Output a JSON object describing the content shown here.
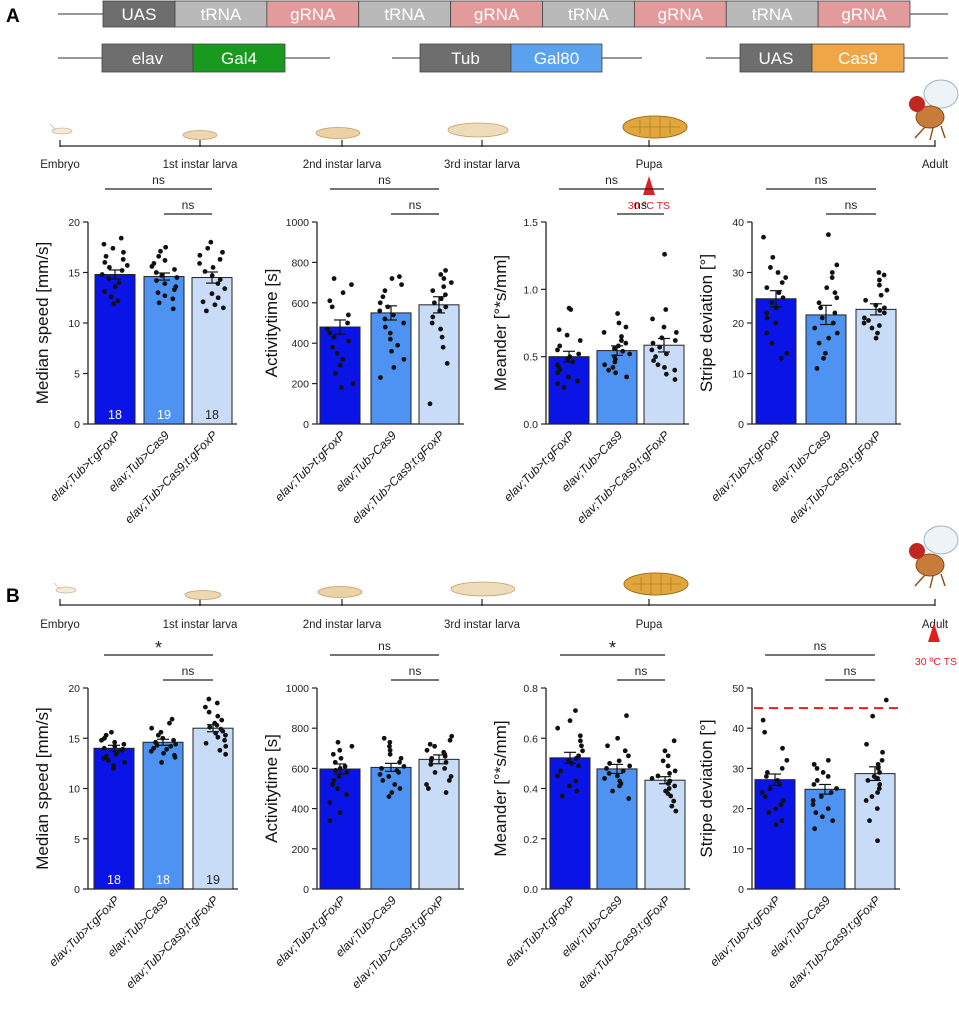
{
  "panel_a": {
    "label": "A",
    "construct": {
      "row1": [
        {
          "text": "UAS",
          "color": "#6e6e6e"
        },
        {
          "text": "tRNA",
          "color": "#b9b9b9"
        },
        {
          "text": "gRNA",
          "color": "#e39a9a"
        },
        {
          "text": "tRNA",
          "color": "#b9b9b9"
        },
        {
          "text": "gRNA",
          "color": "#e39a9a"
        },
        {
          "text": "tRNA",
          "color": "#b9b9b9"
        },
        {
          "text": "gRNA",
          "color": "#e39a9a"
        },
        {
          "text": "tRNA",
          "color": "#b9b9b9"
        },
        {
          "text": "gRNA",
          "color": "#e39a9a"
        }
      ],
      "row2": [
        {
          "promoter": "elav",
          "promoter_color": "#6e6e6e",
          "gene": "Gal4",
          "gene_color": "#179a1d"
        },
        {
          "promoter": "Tub",
          "promoter_color": "#6e6e6e",
          "gene": "Gal80",
          "gene_color": "#5aa2f0"
        },
        {
          "promoter": "UAS",
          "promoter_color": "#6e6e6e",
          "gene": "Cas9",
          "gene_color": "#f0a546"
        }
      ]
    },
    "timeline": {
      "stages": [
        "Embryo",
        "1st instar larva",
        "2nd instar larva",
        "3rd instar larva",
        "Pupa",
        "Adult"
      ],
      "ts_label": "30 ºC TS",
      "ts_stage": "Pupa"
    }
  },
  "panel_b": {
    "label": "B",
    "timeline": {
      "stages": [
        "Embryo",
        "1st instar larva",
        "2nd instar larva",
        "3rd instar larva",
        "Pupa",
        "Adult"
      ],
      "ts_label": "30 ºC TS",
      "ts_stage": "Adult"
    }
  },
  "colors": {
    "group1": "#0a14e6",
    "group2": "#4f93f2",
    "group3": "#c9dcf7",
    "significance_line": "#e02020"
  },
  "chart_data": [
    {
      "panel": "A",
      "type": "bar",
      "ylabel": "Median speed [mm/s]",
      "categories": [
        "elav;Tub>t:gFoxP",
        "elav;Tub>Cas9",
        "elav;Tub>Cas9;t:gFoxP"
      ],
      "values": [
        14.8,
        14.6,
        14.5
      ],
      "sem": [
        0.45,
        0.35,
        0.55
      ],
      "ylim": [
        0,
        20
      ],
      "yticks": [
        0,
        5,
        10,
        15,
        20
      ],
      "n_labels": [
        "18",
        "19",
        "18"
      ],
      "comparisons": [
        {
          "from": 0,
          "to": 2,
          "label": "ns"
        },
        {
          "from": 1,
          "to": 2,
          "label": "ns"
        }
      ],
      "points": [
        [
          18.4,
          17.8,
          17.4,
          17.0,
          16.6,
          16.3,
          16.0,
          15.7,
          15.5,
          15.2,
          14.8,
          14.4,
          14.0,
          13.6,
          13.1,
          12.6,
          12.2,
          11.9
        ],
        [
          17.5,
          17.1,
          16.6,
          16.2,
          15.9,
          15.6,
          15.3,
          15.0,
          14.7,
          14.5,
          14.2,
          13.9,
          13.6,
          13.3,
          13.0,
          12.7,
          12.4,
          12.0,
          11.4
        ],
        [
          18.0,
          17.4,
          17.0,
          16.7,
          16.3,
          15.9,
          15.5,
          15.1,
          14.7,
          14.3,
          13.9,
          13.4,
          12.9,
          12.5,
          12.1,
          11.8,
          11.5,
          11.2
        ]
      ]
    },
    {
      "panel": "A",
      "type": "bar",
      "ylabel": "Activitytime [s]",
      "categories": [
        "elav;Tub>t:gFoxP",
        "elav;Tub>Cas9",
        "elav;Tub>Cas9;t:gFoxP"
      ],
      "values": [
        480,
        550,
        590
      ],
      "sem": [
        35,
        35,
        40
      ],
      "ylim": [
        0,
        1000
      ],
      "yticks": [
        0,
        200,
        400,
        600,
        800,
        1000
      ],
      "n_labels": [],
      "comparisons": [
        {
          "from": 0,
          "to": 2,
          "label": "ns"
        },
        {
          "from": 1,
          "to": 2,
          "label": "ns"
        }
      ],
      "points": [
        [
          720,
          690,
          650,
          610,
          580,
          540,
          500,
          470,
          450,
          430,
          410,
          380,
          350,
          320,
          290,
          250,
          200,
          180
        ],
        [
          730,
          720,
          690,
          660,
          630,
          600,
          580,
          560,
          540,
          520,
          500,
          480,
          450,
          420,
          390,
          360,
          320,
          280,
          230
        ],
        [
          760,
          740,
          720,
          700,
          680,
          660,
          640,
          620,
          600,
          580,
          560,
          530,
          500,
          470,
          430,
          380,
          300,
          100
        ]
      ]
    },
    {
      "panel": "A",
      "type": "bar",
      "ylabel": "Meander [°*s/mm]",
      "categories": [
        "elav;Tub>t:gFoxP",
        "elav;Tub>Cas9",
        "elav;Tub>Cas9;t:gFoxP"
      ],
      "values": [
        0.5,
        0.545,
        0.585
      ],
      "sem": [
        0.04,
        0.035,
        0.05
      ],
      "ylim": [
        0,
        1.5
      ],
      "yticks": [
        0.0,
        0.5,
        1.0,
        1.5
      ],
      "n_labels": [],
      "comparisons": [
        {
          "from": 0,
          "to": 2,
          "label": "ns"
        },
        {
          "from": 1,
          "to": 2,
          "label": "ns"
        }
      ],
      "points": [
        [
          0.86,
          0.85,
          0.7,
          0.66,
          0.62,
          0.58,
          0.55,
          0.52,
          0.5,
          0.48,
          0.46,
          0.44,
          0.42,
          0.4,
          0.38,
          0.35,
          0.32,
          0.3,
          0.27
        ],
        [
          0.82,
          0.75,
          0.72,
          0.68,
          0.65,
          0.62,
          0.6,
          0.58,
          0.56,
          0.54,
          0.52,
          0.5,
          0.48,
          0.46,
          0.44,
          0.42,
          0.4,
          0.38,
          0.35
        ],
        [
          1.26,
          0.85,
          0.78,
          0.72,
          0.68,
          0.64,
          0.62,
          0.6,
          0.57,
          0.55,
          0.52,
          0.5,
          0.47,
          0.44,
          0.42,
          0.4,
          0.37,
          0.33
        ]
      ]
    },
    {
      "panel": "A",
      "type": "bar",
      "ylabel": "Stripe deviation [°]",
      "categories": [
        "elav;Tub>t:gFoxP",
        "elav;Tub>Cas9",
        "elav;Tub>Cas9;t:gFoxP"
      ],
      "values": [
        24.8,
        21.6,
        22.7
      ],
      "sem": [
        1.6,
        1.9,
        1.1
      ],
      "ylim": [
        0,
        40
      ],
      "yticks": [
        0,
        10,
        20,
        30,
        40
      ],
      "n_labels": [],
      "comparisons": [
        {
          "from": 0,
          "to": 2,
          "label": "ns"
        },
        {
          "from": 1,
          "to": 2,
          "label": "ns"
        }
      ],
      "points": [
        [
          37,
          33,
          31,
          30,
          29,
          28,
          27,
          26,
          25,
          24,
          23,
          22,
          21,
          20,
          18,
          16,
          14,
          13
        ],
        [
          37.5,
          31.5,
          30,
          29,
          27,
          26,
          25,
          24,
          23,
          22,
          21,
          20,
          19,
          18,
          17,
          16,
          14,
          13,
          11
        ],
        [
          30,
          29.5,
          28.5,
          27.5,
          26.5,
          25.5,
          24.5,
          23.5,
          23,
          22.5,
          22,
          21,
          20.5,
          20,
          19.5,
          19,
          18,
          17
        ]
      ]
    },
    {
      "panel": "B",
      "type": "bar",
      "ylabel": "Median speed [mm/s]",
      "categories": [
        "elav;Tub>t:gFoxP",
        "elav;Tub>Cas9",
        "elav;Tub>Cas9;t:gFoxP"
      ],
      "values": [
        14.0,
        14.6,
        16.0
      ],
      "sem": [
        0.3,
        0.3,
        0.35
      ],
      "ylim": [
        0,
        20
      ],
      "yticks": [
        0,
        5,
        10,
        15,
        20
      ],
      "n_labels": [
        "18",
        "18",
        "19"
      ],
      "comparisons": [
        {
          "from": 0,
          "to": 2,
          "label": "*"
        },
        {
          "from": 1,
          "to": 2,
          "label": "ns"
        }
      ],
      "points": [
        [
          15.6,
          15.3,
          15.0,
          14.8,
          14.6,
          14.4,
          14.2,
          14.0,
          13.9,
          13.8,
          13.6,
          13.4,
          13.2,
          13.0,
          12.8,
          12.6,
          12.3,
          12.0
        ],
        [
          16.9,
          16.5,
          16.0,
          15.6,
          15.3,
          15.0,
          14.8,
          14.6,
          14.4,
          14.3,
          14.2,
          14.0,
          13.9,
          13.7,
          13.5,
          13.3,
          13.1,
          12.6
        ],
        [
          18.9,
          18.5,
          18.1,
          17.6,
          17.2,
          16.8,
          16.5,
          16.3,
          16.1,
          15.9,
          15.7,
          15.5,
          15.3,
          15.1,
          14.8,
          14.5,
          14.2,
          13.8,
          13.4
        ]
      ]
    },
    {
      "panel": "B",
      "type": "bar",
      "ylabel": "Activitytime [s]",
      "categories": [
        "elav;Tub>t:gFoxP",
        "elav;Tub>Cas9",
        "elav;Tub>Cas9;t:gFoxP"
      ],
      "values": [
        597,
        605,
        645
      ],
      "sem": [
        25,
        20,
        22
      ],
      "ylim": [
        0,
        1000
      ],
      "yticks": [
        0,
        200,
        400,
        600,
        800,
        1000
      ],
      "n_labels": [],
      "comparisons": [
        {
          "from": 0,
          "to": 2,
          "label": "ns"
        },
        {
          "from": 1,
          "to": 2,
          "label": "ns"
        }
      ],
      "points": [
        [
          730,
          710,
          690,
          670,
          650,
          630,
          610,
          600,
          590,
          580,
          560,
          540,
          520,
          500,
          470,
          430,
          380,
          340
        ],
        [
          750,
          730,
          710,
          690,
          670,
          650,
          630,
          610,
          600,
          590,
          580,
          570,
          560,
          540,
          520,
          500,
          480,
          460
        ],
        [
          760,
          740,
          720,
          710,
          690,
          680,
          670,
          660,
          650,
          640,
          630,
          620,
          600,
          580,
          560,
          540,
          520,
          500,
          480
        ]
      ]
    },
    {
      "panel": "B",
      "type": "bar",
      "ylabel": "Meander [°*s/mm]",
      "categories": [
        "elav;Tub>t:gFoxP",
        "elav;Tub>Cas9",
        "elav;Tub>Cas9;t:gFoxP"
      ],
      "values": [
        0.522,
        0.478,
        0.433
      ],
      "sem": [
        0.022,
        0.018,
        0.014
      ],
      "ylim": [
        0,
        0.8
      ],
      "yticks": [
        0.0,
        0.2,
        0.4,
        0.6,
        0.8
      ],
      "n_labels": [],
      "comparisons": [
        {
          "from": 0,
          "to": 2,
          "label": "*"
        },
        {
          "from": 1,
          "to": 2,
          "label": "ns"
        }
      ],
      "points": [
        [
          0.71,
          0.67,
          0.64,
          0.61,
          0.59,
          0.57,
          0.55,
          0.53,
          0.52,
          0.51,
          0.5,
          0.49,
          0.47,
          0.45,
          0.43,
          0.41,
          0.39,
          0.37
        ],
        [
          0.69,
          0.6,
          0.57,
          0.55,
          0.53,
          0.51,
          0.5,
          0.49,
          0.48,
          0.47,
          0.46,
          0.45,
          0.44,
          0.43,
          0.42,
          0.41,
          0.39,
          0.36
        ],
        [
          0.59,
          0.55,
          0.53,
          0.51,
          0.49,
          0.47,
          0.46,
          0.45,
          0.44,
          0.43,
          0.42,
          0.41,
          0.4,
          0.39,
          0.38,
          0.37,
          0.35,
          0.33,
          0.31
        ]
      ]
    },
    {
      "panel": "B",
      "type": "bar",
      "ylabel": "Stripe deviation [°]",
      "categories": [
        "elav;Tub>t:gFoxP",
        "elav;Tub>Cas9",
        "elav;Tub>Cas9;t:gFoxP"
      ],
      "values": [
        27.2,
        24.8,
        28.7
      ],
      "sem": [
        1.4,
        1.2,
        1.7
      ],
      "ylim": [
        0,
        50
      ],
      "yticks": [
        0,
        10,
        20,
        30,
        40,
        50
      ],
      "threshold": 45,
      "n_labels": [],
      "comparisons": [
        {
          "from": 0,
          "to": 2,
          "label": "ns"
        },
        {
          "from": 1,
          "to": 2,
          "label": "ns"
        }
      ],
      "points": [
        [
          42,
          39,
          35,
          32,
          30,
          29,
          28,
          27,
          26,
          25,
          24,
          23,
          22,
          21,
          20,
          19,
          17,
          16
        ],
        [
          32,
          31,
          30,
          29,
          28,
          27,
          26,
          25,
          24,
          23,
          22,
          21,
          20,
          19,
          18,
          17,
          15
        ],
        [
          47,
          43,
          36,
          34,
          32,
          31,
          30,
          29,
          28,
          27.5,
          27,
          26,
          25,
          24,
          23,
          22,
          20,
          17,
          12
        ]
      ]
    }
  ]
}
